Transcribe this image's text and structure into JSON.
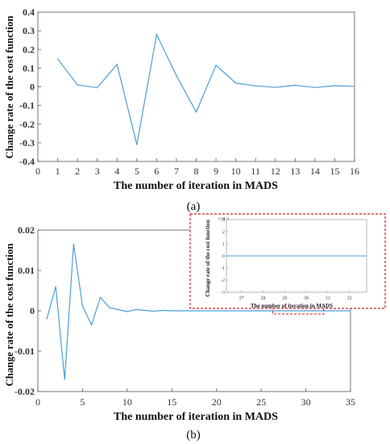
{
  "chart_data": [
    {
      "panel": "a",
      "type": "line",
      "xlabel": "The number of iteration in MADS",
      "ylabel": "Change rate of the cost function",
      "xlim": [
        0,
        16
      ],
      "ylim": [
        -0.4,
        0.4
      ],
      "xticks": [
        0,
        1,
        2,
        3,
        4,
        5,
        6,
        7,
        8,
        9,
        10,
        11,
        12,
        13,
        14,
        15,
        16
      ],
      "yticks": [
        -0.4,
        -0.3,
        -0.2,
        -0.1,
        0,
        0.1,
        0.2,
        0.3,
        0.4
      ],
      "ytick_labels": [
        "-0.4",
        "-0.3",
        "-0.2",
        "-0.1",
        "0",
        "0.1",
        "0.2",
        "0.3",
        "0.4"
      ],
      "grid": false,
      "color": "#4a9fd4",
      "x": [
        1,
        2,
        3,
        4,
        5,
        6,
        7,
        8,
        9,
        10,
        11,
        12,
        13,
        14,
        15,
        16
      ],
      "y": [
        0.15,
        0.01,
        -0.005,
        0.12,
        -0.31,
        0.28,
        0.06,
        -0.135,
        0.115,
        0.02,
        0.005,
        -0.003,
        0.008,
        -0.004,
        0.006,
        0.002
      ]
    },
    {
      "panel": "b",
      "type": "line",
      "xlabel": "The number of iteration in MADS",
      "ylabel": "Change rate of the cost function",
      "xlim": [
        0,
        35
      ],
      "ylim": [
        -0.02,
        0.02
      ],
      "xticks": [
        0,
        5,
        10,
        15,
        20,
        25,
        30,
        35
      ],
      "yticks": [
        -0.02,
        -0.01,
        0,
        0.01,
        0.02
      ],
      "ytick_labels": [
        "-0.02",
        "-0.01",
        "0",
        "0.01",
        "0.02"
      ],
      "grid": false,
      "color": "#4a9fd4",
      "x": [
        1,
        2,
        3,
        4,
        5,
        6,
        7,
        8,
        9,
        10,
        11,
        12,
        13,
        14,
        15,
        16,
        17,
        18,
        19,
        20,
        21,
        22,
        23,
        24,
        25,
        26,
        27,
        28,
        29,
        30,
        31,
        32,
        33,
        34,
        35
      ],
      "y": [
        -0.002,
        0.006,
        -0.017,
        0.0165,
        0.0012,
        -0.0035,
        0.0033,
        0.0008,
        0.0003,
        -0.0002,
        0.0003,
        0.0001,
        -0.0001,
        0.0001,
        0,
        0,
        0,
        0,
        0,
        0,
        0,
        0,
        0,
        0,
        0,
        0,
        0,
        0,
        0,
        0,
        0,
        0,
        0,
        0,
        0
      ],
      "highlight_x_range": [
        26.3,
        32
      ],
      "inset": {
        "xlabel": "The number of iteration in MADS",
        "ylabel": "Change rate of the cost function",
        "exponent_label": "×10⁻³",
        "xlim": [
          26.3,
          32.8
        ],
        "ylim": [
          -3,
          3
        ],
        "xticks": [
          27,
          28,
          29,
          30,
          31,
          32
        ],
        "yticks": [
          -3,
          -2,
          -1,
          0,
          1,
          2,
          3
        ],
        "x": [
          26.3,
          32.8
        ],
        "y": [
          0,
          0
        ]
      }
    }
  ],
  "panel_labels": {
    "a": "(a)",
    "b": "(b)"
  },
  "colors": {
    "line": "#4a9fd4",
    "highlight": "#d0202a",
    "axis": "#555555"
  }
}
